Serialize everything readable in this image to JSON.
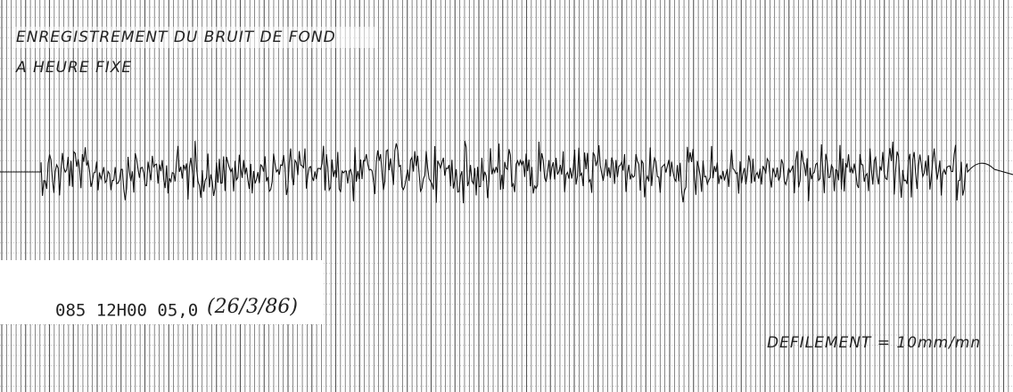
{
  "header": {
    "lines": [
      "ENREGISTREMENT DU BRUIT DE FOND",
      "A HEURE FIXE"
    ]
  },
  "record": {
    "station": "085 12H00 05,0",
    "date": "(26/3/86)"
  },
  "footer": {
    "speed": "DEFILEMENT = 10mm/mn"
  }
}
